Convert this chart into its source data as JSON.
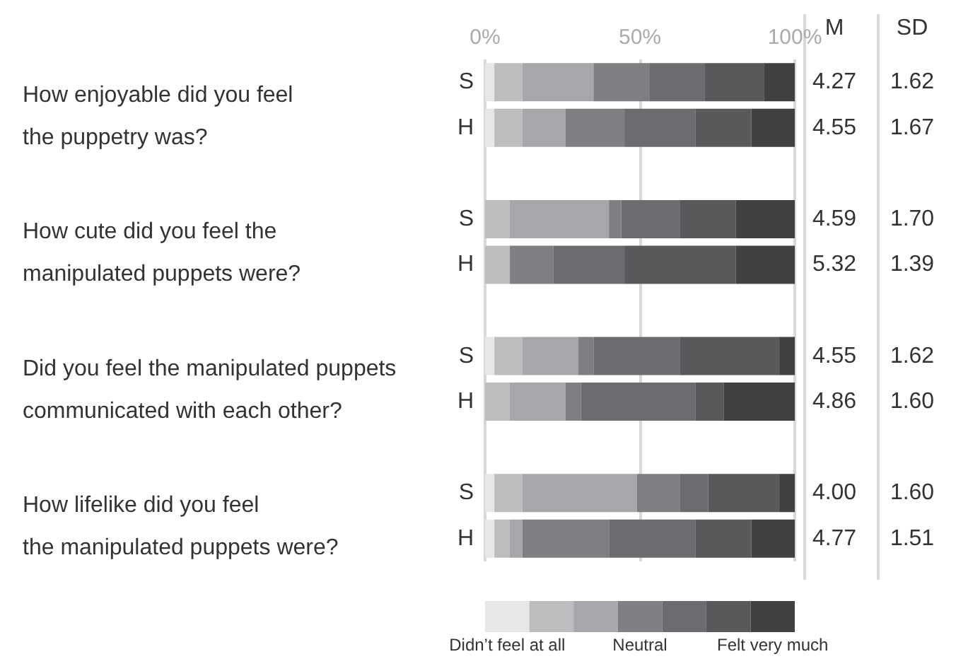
{
  "chart_data": {
    "type": "bar",
    "orientation": "horizontal",
    "stacked": true,
    "categories": [
      "S",
      "H",
      null,
      "S",
      "H",
      null,
      "S",
      "H",
      null,
      "S",
      "H"
    ],
    "series": [
      {
        "name": "Didn’t feel at all",
        "color": "#e6e7e8",
        "values": [
          3,
          3,
          null,
          0,
          0,
          null,
          3,
          0,
          null,
          3,
          3
        ]
      },
      {
        "color": "#bcbdbf",
        "values": [
          9,
          9,
          null,
          8,
          8,
          null,
          9,
          8,
          null,
          9,
          5
        ]
      },
      {
        "color": "#a6a7aa",
        "values": [
          23,
          14,
          null,
          32,
          0,
          null,
          18,
          18,
          null,
          37,
          4
        ]
      },
      {
        "name": "Neutral",
        "color": "#7e7f82",
        "values": [
          18,
          19,
          null,
          4,
          14,
          null,
          5,
          5,
          null,
          14,
          28
        ]
      },
      {
        "color": "#6b6c6f",
        "values": [
          18,
          23,
          null,
          19,
          23,
          null,
          28,
          37,
          null,
          9,
          28
        ]
      },
      {
        "color": "#58595b",
        "values": [
          19,
          18,
          null,
          18,
          36,
          null,
          32,
          9,
          null,
          23,
          18
        ]
      },
      {
        "name": "Felt very much",
        "color": "#414143",
        "values": [
          10,
          14,
          null,
          19,
          19,
          null,
          5,
          23,
          null,
          5,
          14
        ]
      }
    ],
    "xlim": [
      0,
      100
    ],
    "xticks": [
      {
        "value": 0,
        "label": "0%"
      },
      {
        "value": 50,
        "label": "50%"
      },
      {
        "value": 100,
        "label": "100%"
      }
    ],
    "grid": "x",
    "legend": "bottom",
    "annotations": [
      "How enjoyable did you feel\nthe puppetry was?",
      "How cute did you feel the\nmanipulated puppets were?",
      "Did you feel the manipulated puppets\ncommunicated with each other?",
      "How lifelike did you feel\nthe manipulated puppets were?",
      "M",
      "SD",
      "4.27",
      "1.62",
      "4.55",
      "1.67",
      "4.59",
      "1.70",
      "5.32",
      "1.39",
      "4.55",
      "1.62",
      "4.86",
      "1.60",
      "4.00",
      "1.60",
      "4.77",
      "1.51"
    ]
  }
}
